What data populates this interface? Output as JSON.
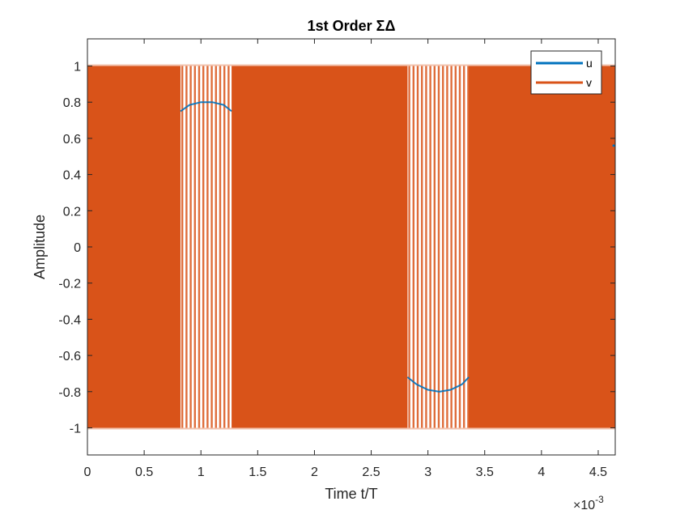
{
  "chart_data": {
    "type": "line",
    "title": "1st Order ΣΔ",
    "xlabel": "Time t/T",
    "ylabel": "Amplitude",
    "x_exponent_prefix": "×10",
    "x_exponent_power": "-3",
    "xlim": [
      0,
      4.65
    ],
    "ylim": [
      -1.15,
      1.15
    ],
    "x_tick_values": [
      0,
      0.5,
      1,
      1.5,
      2,
      2.5,
      3,
      3.5,
      4,
      4.5
    ],
    "x_tick_labels": [
      "0",
      "0.5",
      "1",
      "1.5",
      "2",
      "2.5",
      "3",
      "3.5",
      "4",
      "4.5"
    ],
    "y_tick_values": [
      1,
      0.8,
      0.6,
      0.4,
      0.2,
      0,
      -0.2,
      -0.4,
      -0.6,
      -0.8,
      -1
    ],
    "y_tick_labels": [
      "1",
      "0.8",
      "0.6",
      "0.4",
      "0.2",
      "0",
      "-0.2",
      "-0.4",
      "-0.6",
      "-0.8",
      "-1"
    ],
    "grid": false,
    "legend_position": "top-right",
    "series": [
      {
        "name": "u",
        "color": "#0072BD",
        "description_kind": "sinusoid",
        "amplitude": 0.8,
        "period_x": 4.1,
        "visible_segments": [
          {
            "x": [
              0.82,
              0.9,
              1.0,
              1.05,
              1.1,
              1.2,
              1.27
            ],
            "y": [
              0.75,
              0.785,
              0.8,
              0.8,
              0.8,
              0.785,
              0.75
            ]
          },
          {
            "x": [
              2.82,
              2.9,
              3.0,
              3.1,
              3.2,
              3.3,
              3.36
            ],
            "y": [
              -0.72,
              -0.76,
              -0.79,
              -0.8,
              -0.79,
              -0.76,
              -0.72
            ]
          },
          {
            "x": [
              4.65
            ],
            "y": [
              0.56
            ]
          }
        ]
      },
      {
        "name": "v",
        "color": "#D95319",
        "description_kind": "binary ±1 oscillation",
        "values_range": [
          -1,
          1
        ],
        "sparse_high_intervals": [
          [
            0.82,
            1.27
          ],
          [
            2.82,
            3.36
          ]
        ]
      }
    ]
  }
}
